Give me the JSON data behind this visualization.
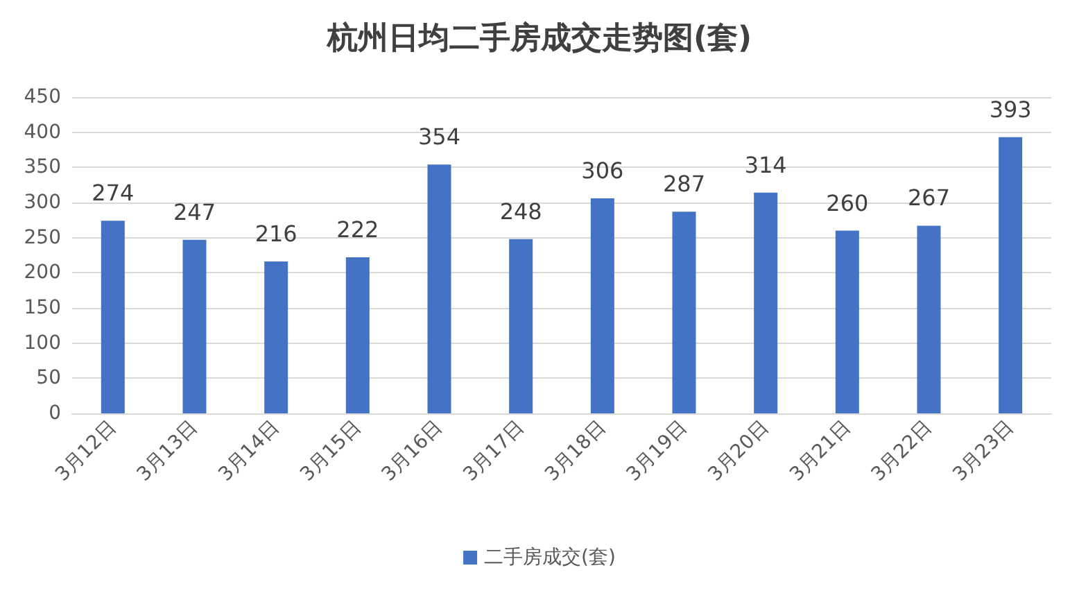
{
  "chart_data": {
    "type": "bar",
    "title": "杭州日均二手房成交走势图(套)",
    "categories": [
      "3月12日",
      "3月13日",
      "3月14日",
      "3月15日",
      "3月16日",
      "3月17日",
      "3月18日",
      "3月19日",
      "3月20日",
      "3月21日",
      "3月22日",
      "3月23日"
    ],
    "series": [
      {
        "name": "二手房成交(套)",
        "color": "#4472c4",
        "values": [
          274,
          247,
          216,
          222,
          354,
          248,
          306,
          287,
          314,
          260,
          267,
          393
        ]
      }
    ],
    "ylim": [
      0,
      450
    ],
    "yticks": [
      0,
      50,
      100,
      150,
      200,
      250,
      300,
      350,
      400,
      450
    ],
    "grid": "y",
    "legend": "bottom",
    "data_labels": true
  }
}
